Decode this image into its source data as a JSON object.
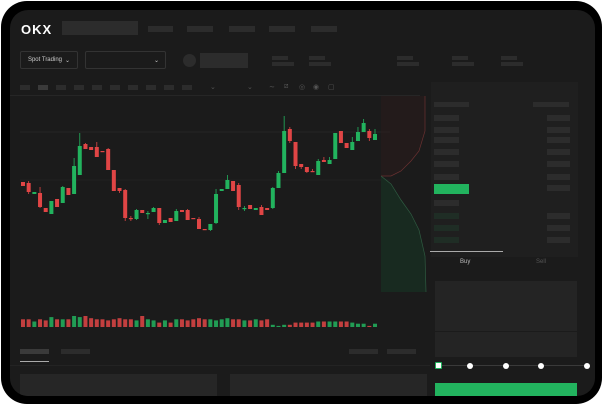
{
  "header": {
    "logo": "OKX"
  },
  "market_bar": {
    "mode_dropdown": "Spot Trading",
    "chevron": "⌄"
  },
  "trade": {
    "buy_tab": "Buy",
    "sell_tab": "Sell",
    "slider_percent": 0
  },
  "colors": {
    "up": "#22b35e",
    "down": "#e04545",
    "background": "#1b1b1b",
    "accent": "#22b35e"
  },
  "icons": [
    "chevron-down-icon",
    "line-icon",
    "ruler-icon",
    "camera-icon",
    "settings-icon",
    "fullscreen-icon",
    "orderbook-both-icon",
    "orderbook-bids-icon",
    "orderbook-asks-icon"
  ],
  "chart_data": {
    "type": "candlestick",
    "candles": [
      [
        59,
        55,
        59,
        55
      ],
      [
        58,
        49,
        60,
        47
      ],
      [
        47,
        49,
        49,
        47
      ],
      [
        48,
        34,
        54,
        33
      ],
      [
        33,
        29,
        33,
        29
      ],
      [
        27,
        40,
        40,
        27
      ],
      [
        42,
        34,
        42,
        34
      ],
      [
        38,
        54,
        55,
        38
      ],
      [
        53,
        46,
        53,
        46
      ],
      [
        47,
        75,
        83,
        47
      ],
      [
        66,
        95,
        108,
        66
      ],
      [
        97,
        92,
        98,
        92
      ],
      [
        94,
        91,
        94,
        91
      ],
      [
        94,
        84,
        99,
        84
      ],
      [
        90,
        89,
        90,
        89
      ],
      [
        92,
        71,
        93,
        71
      ],
      [
        71,
        50,
        71,
        50
      ],
      [
        53,
        50,
        53,
        48
      ],
      [
        51,
        23,
        52,
        20
      ],
      [
        23,
        22,
        25,
        20
      ],
      [
        22,
        31,
        32,
        21
      ],
      [
        31,
        28,
        31,
        28
      ],
      [
        27,
        28,
        30,
        22
      ],
      [
        29,
        33,
        34,
        29
      ],
      [
        33,
        18,
        33,
        16
      ],
      [
        18,
        21,
        21,
        18
      ],
      [
        23,
        19,
        23,
        19
      ],
      [
        20,
        30,
        32,
        20
      ],
      [
        31,
        29,
        31,
        29
      ],
      [
        31,
        21,
        32,
        21
      ],
      [
        23,
        22,
        23,
        22
      ],
      [
        22,
        12,
        24,
        12
      ],
      [
        12,
        11,
        12,
        11
      ],
      [
        11,
        17,
        17,
        10
      ],
      [
        18,
        47,
        52,
        17
      ],
      [
        50,
        52,
        52,
        50
      ],
      [
        52,
        61,
        66,
        52
      ],
      [
        60,
        50,
        60,
        50
      ],
      [
        56,
        34,
        58,
        31
      ],
      [
        32,
        33,
        35,
        30
      ],
      [
        36,
        32,
        36,
        32
      ],
      [
        31,
        33,
        33,
        31
      ],
      [
        34,
        26,
        36,
        26
      ],
      [
        33,
        31,
        33,
        31
      ],
      [
        33,
        53,
        54,
        32
      ],
      [
        53,
        68,
        70,
        53
      ],
      [
        68,
        110,
        125,
        68
      ],
      [
        112,
        100,
        114,
        98
      ],
      [
        99,
        75,
        99,
        72
      ],
      [
        77,
        74,
        77,
        72
      ],
      [
        74,
        69,
        74,
        68
      ],
      [
        70,
        69,
        72,
        69
      ],
      [
        66,
        80,
        82,
        66
      ],
      [
        81,
        79,
        84,
        79
      ],
      [
        77,
        81,
        84,
        77
      ],
      [
        82,
        108,
        108,
        82
      ],
      [
        110,
        98,
        110,
        98
      ],
      [
        98,
        93,
        98,
        93
      ],
      [
        91,
        99,
        104,
        91
      ],
      [
        100,
        109,
        114,
        100
      ],
      [
        109,
        118,
        122,
        109
      ],
      [
        110,
        103,
        112,
        100
      ],
      [
        101,
        107,
        112,
        101
      ]
    ],
    "volumes": [
      7,
      7,
      5,
      7,
      6,
      9,
      7,
      7,
      7,
      10,
      9,
      10,
      8,
      7,
      7,
      6,
      7,
      8,
      7,
      7,
      6,
      10,
      7,
      6,
      4,
      6,
      4,
      7,
      7,
      6,
      7,
      8,
      7,
      7,
      6,
      7,
      8,
      7,
      7,
      6,
      6,
      7,
      6,
      7,
      2,
      1,
      2,
      2,
      4,
      4,
      4,
      4,
      5,
      5,
      5,
      5,
      5,
      5,
      4,
      3,
      3,
      1,
      3
    ]
  }
}
